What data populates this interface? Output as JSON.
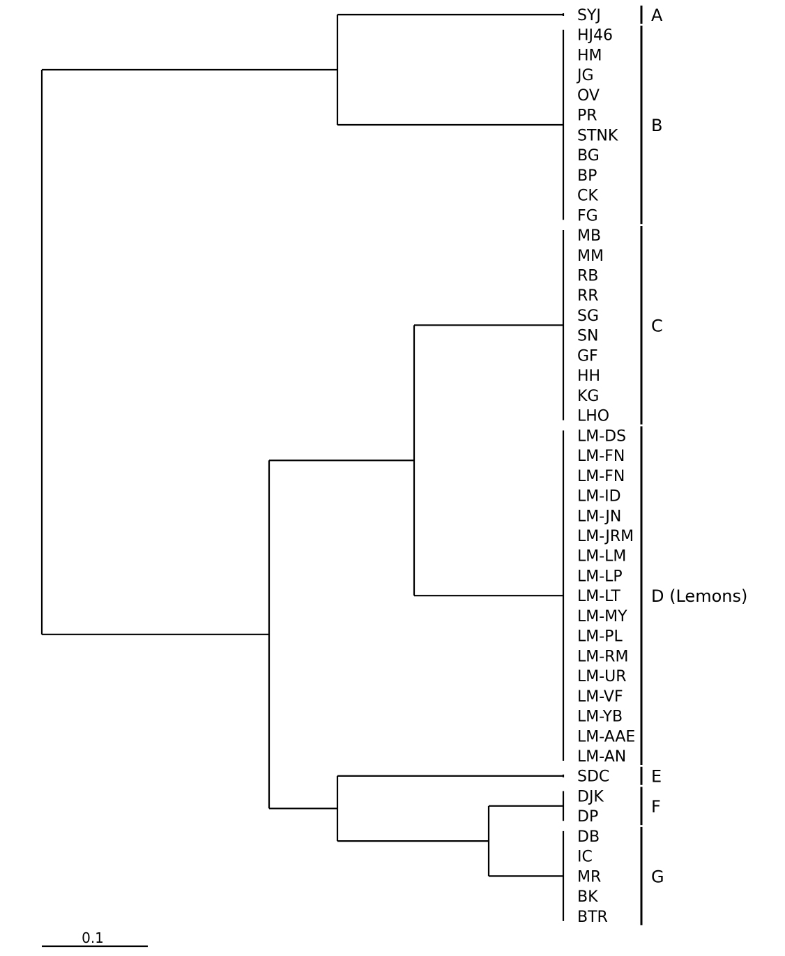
{
  "leaves": [
    "SYJ",
    "HJ46",
    "HM",
    "JG",
    "OV",
    "PR",
    "STNK",
    "BG",
    "BP",
    "CK",
    "FG",
    "MB",
    "MM",
    "RB",
    "RR",
    "SG",
    "SN",
    "GF",
    "HH",
    "KG",
    "LHO",
    "LM-DS",
    "LM-FN",
    "LM-FN",
    "LM-ID",
    "LM-JN",
    "LM-JRM",
    "LM-LM",
    "LM-LP",
    "LM-LT",
    "LM-MY",
    "LM-PL",
    "LM-RM",
    "LM-UR",
    "LM-VF",
    "LM-YB",
    "LM-AAE",
    "LM-AN",
    "SDC",
    "DJK",
    "DP",
    "DB",
    "IC",
    "MR",
    "BK",
    "BTR"
  ],
  "groups": [
    {
      "label": "A",
      "first": 0,
      "last": 0
    },
    {
      "label": "B",
      "first": 1,
      "last": 10
    },
    {
      "label": "C",
      "first": 11,
      "last": 20
    },
    {
      "label": "D (Lemons)",
      "first": 21,
      "last": 37
    },
    {
      "label": "E",
      "first": 38,
      "last": 38
    },
    {
      "label": "F",
      "first": 39,
      "last": 40
    },
    {
      "label": "G",
      "first": 41,
      "last": 45
    }
  ],
  "scale_bar": {
    "label": "0.1",
    "value": 0.1
  }
}
